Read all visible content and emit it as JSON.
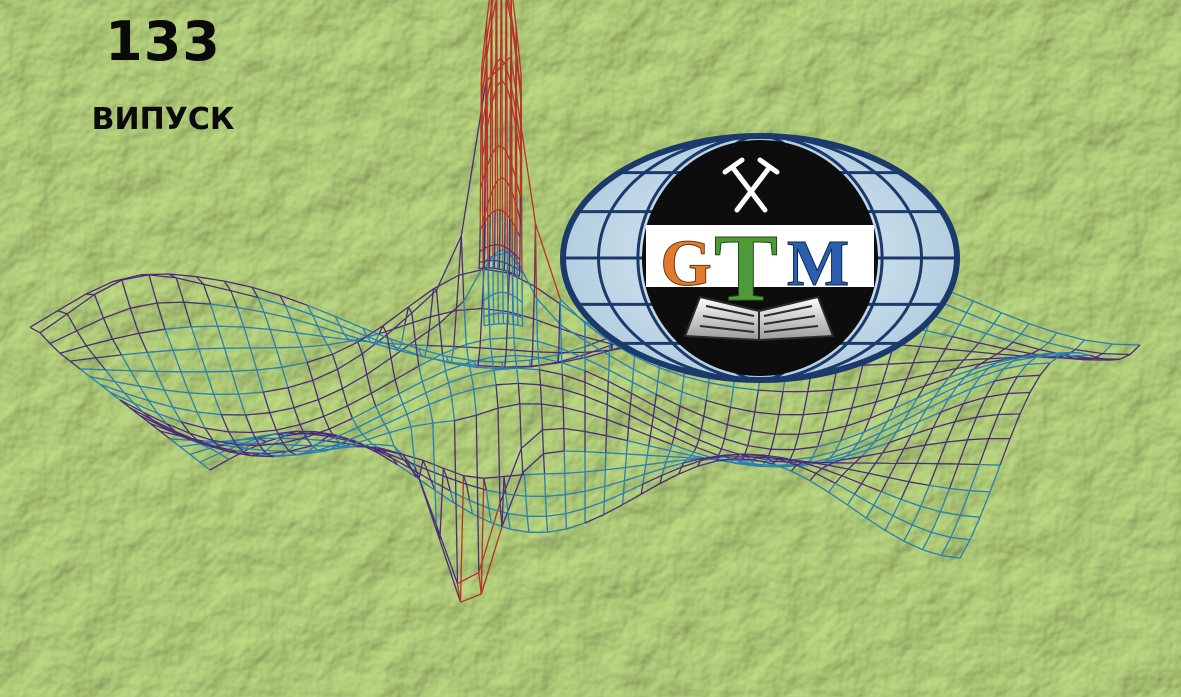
{
  "issue": {
    "number": "133",
    "word": "ВИПУСК"
  },
  "logo": {
    "letter_g": "G",
    "letter_t": "T",
    "letter_m": "M"
  },
  "icons": {
    "emblem": "crossed-hammers-icon",
    "book": "open-book-icon"
  },
  "colors": {
    "background": "#c9dfa0",
    "mesh_blue": "#2a7fb0",
    "mesh_purple": "#4b2b7a",
    "mesh_red": "#b8322a",
    "letter_g": "#e07a2c",
    "letter_t": "#4f9a3a",
    "letter_m": "#2a5fb0"
  }
}
